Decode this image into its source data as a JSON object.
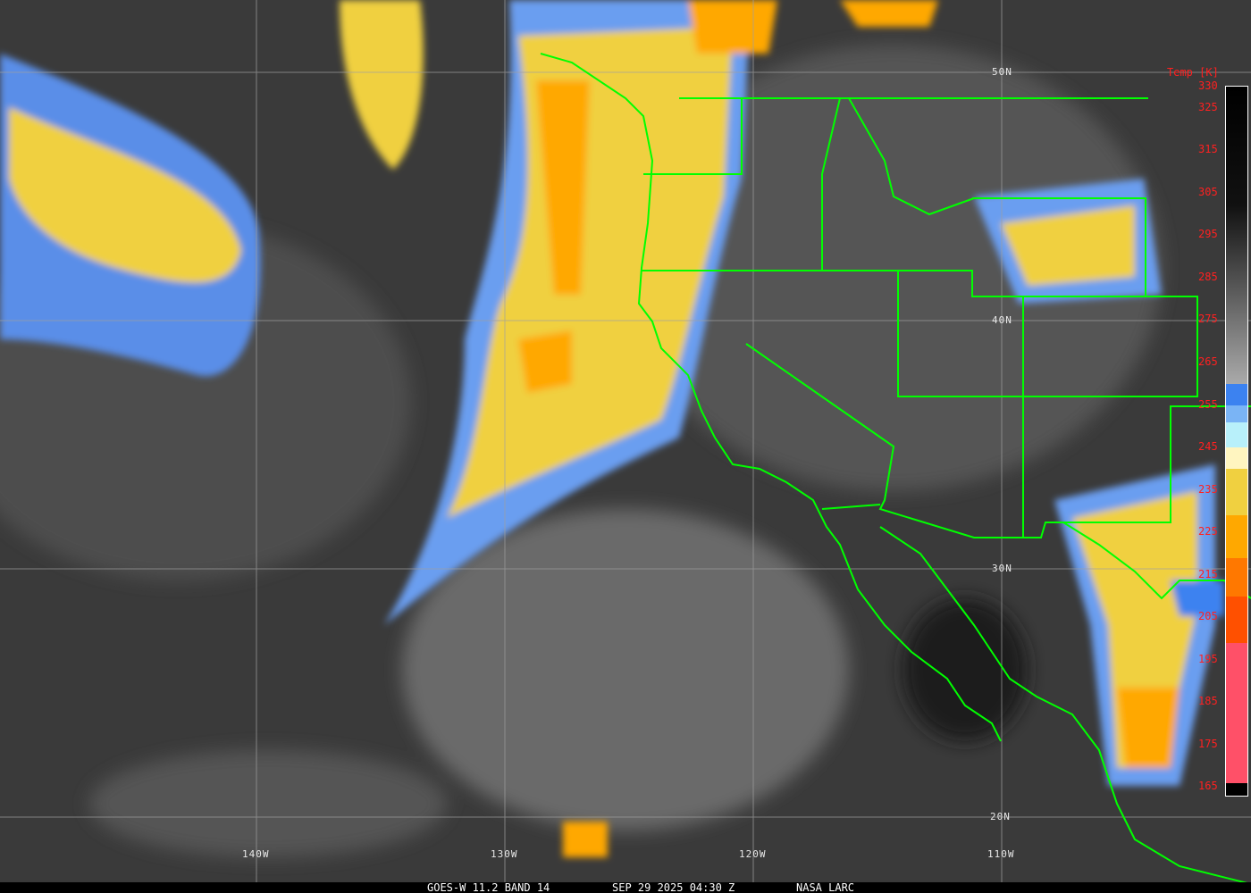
{
  "caption": {
    "satellite": "GOES-W 11.2 BAND 14",
    "datetime": "SEP 29 2025 04:30 Z",
    "source": "NASA LARC"
  },
  "latitude_labels": [
    "50N",
    "40N",
    "30N",
    "20N"
  ],
  "longitude_labels": [
    "140W",
    "130W",
    "120W",
    "110W"
  ],
  "colorbar": {
    "title": "Temp [K]",
    "range_k": [
      163,
      330
    ],
    "tick_labels": [
      "330",
      "325",
      "315",
      "305",
      "295",
      "285",
      "275",
      "265",
      "255",
      "245",
      "235",
      "225",
      "215",
      "205",
      "195",
      "185",
      "175",
      "165"
    ],
    "bands": [
      {
        "from": 330,
        "to": 260,
        "color": "gradient black-to-gray"
      },
      {
        "from": 260,
        "to": 255,
        "color": "#3c82f0"
      },
      {
        "from": 255,
        "to": 251,
        "color": "#7ab4f5"
      },
      {
        "from": 251,
        "to": 245,
        "color": "#b8f0fa"
      },
      {
        "from": 245,
        "to": 240,
        "color": "#fff5c0"
      },
      {
        "from": 240,
        "to": 229,
        "color": "#f0d040"
      },
      {
        "from": 229,
        "to": 219,
        "color": "#ffa800"
      },
      {
        "from": 219,
        "to": 210,
        "color": "#ff7800"
      },
      {
        "from": 210,
        "to": 199,
        "color": "#ff5000"
      },
      {
        "from": 199,
        "to": 166,
        "color": "#ff5068"
      },
      {
        "from": 166,
        "to": 163,
        "color": "#000000"
      }
    ]
  },
  "colors": {
    "borders": "#00ff00",
    "grid": "#a0a0a0",
    "labels": "#ff2020"
  }
}
